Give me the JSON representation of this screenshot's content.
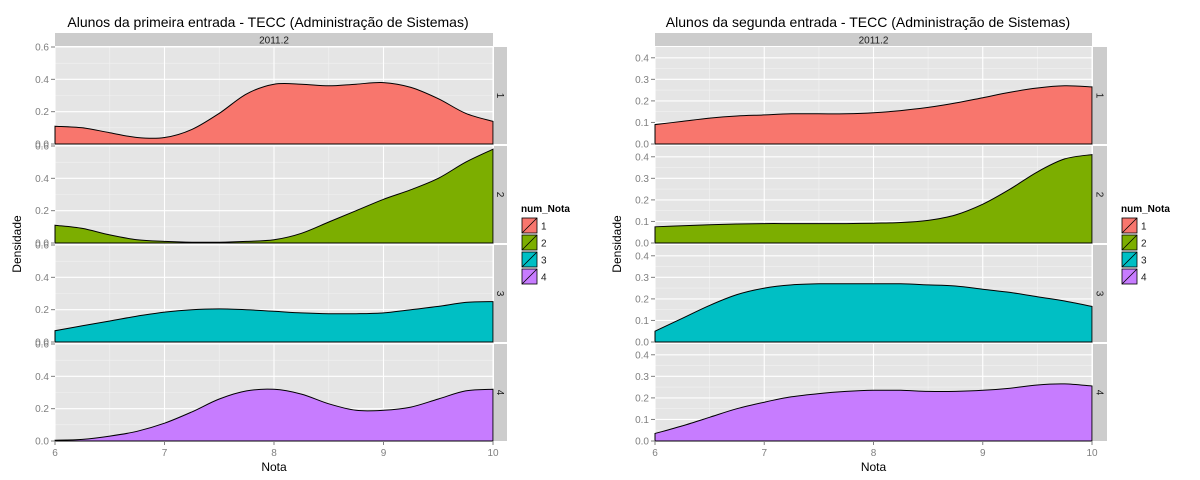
{
  "chart_data": [
    {
      "type": "area",
      "subtype": "faceted density",
      "title": "Alunos da primeira entrada -  TECC (Administração de Sistemas)",
      "facet_column_label": "2011.2",
      "facet_rows": [
        "1",
        "2",
        "3",
        "4"
      ],
      "xlabel": "Nota",
      "ylabel": "Densidade",
      "xlim": [
        6,
        10
      ],
      "x_ticks": [
        "6",
        "7",
        "8",
        "9",
        "10"
      ],
      "ylim": [
        0,
        0.6
      ],
      "y_ticks": [
        "0.0",
        "0.2",
        "0.4",
        "0.6"
      ],
      "grid": true,
      "legend": {
        "title": "num_Nota",
        "placement": "right",
        "items": [
          "1",
          "2",
          "3",
          "4"
        ]
      },
      "series": [
        {
          "facet": "1",
          "x": [
            6.0,
            6.25,
            6.5,
            6.75,
            7.0,
            7.25,
            7.5,
            7.75,
            8.0,
            8.25,
            8.5,
            8.75,
            9.0,
            9.25,
            9.5,
            9.75,
            10.0
          ],
          "y": [
            0.11,
            0.1,
            0.07,
            0.04,
            0.04,
            0.09,
            0.19,
            0.31,
            0.37,
            0.37,
            0.36,
            0.37,
            0.38,
            0.35,
            0.28,
            0.19,
            0.14
          ]
        },
        {
          "facet": "2",
          "x": [
            6.0,
            6.25,
            6.5,
            6.75,
            7.0,
            7.25,
            7.5,
            7.75,
            8.0,
            8.25,
            8.5,
            8.75,
            9.0,
            9.25,
            9.5,
            9.75,
            10.0
          ],
          "y": [
            0.11,
            0.09,
            0.05,
            0.02,
            0.01,
            0.005,
            0.005,
            0.01,
            0.02,
            0.06,
            0.13,
            0.2,
            0.27,
            0.33,
            0.4,
            0.5,
            0.58
          ]
        },
        {
          "facet": "3",
          "x": [
            6.0,
            6.25,
            6.5,
            6.75,
            7.0,
            7.25,
            7.5,
            7.75,
            8.0,
            8.25,
            8.5,
            8.75,
            9.0,
            9.25,
            9.5,
            9.75,
            10.0
          ],
          "y": [
            0.07,
            0.1,
            0.13,
            0.16,
            0.185,
            0.2,
            0.205,
            0.2,
            0.19,
            0.18,
            0.175,
            0.175,
            0.18,
            0.2,
            0.22,
            0.245,
            0.25
          ]
        },
        {
          "facet": "4",
          "x": [
            6.0,
            6.25,
            6.5,
            6.75,
            7.0,
            7.25,
            7.5,
            7.75,
            8.0,
            8.25,
            8.5,
            8.75,
            9.0,
            9.25,
            9.5,
            9.75,
            10.0
          ],
          "y": [
            0.005,
            0.01,
            0.03,
            0.06,
            0.11,
            0.18,
            0.26,
            0.31,
            0.32,
            0.29,
            0.23,
            0.19,
            0.19,
            0.21,
            0.26,
            0.31,
            0.32
          ]
        }
      ]
    },
    {
      "type": "area",
      "subtype": "faceted density",
      "title": "Alunos da segunda entrada -  TECC (Administração de Sistemas)",
      "facet_column_label": "2011.2",
      "facet_rows": [
        "1",
        "2",
        "3",
        "4"
      ],
      "xlabel": "Nota",
      "ylabel": "Densidade",
      "xlim": [
        6,
        10
      ],
      "x_ticks": [
        "6",
        "7",
        "8",
        "9",
        "10"
      ],
      "ylim": [
        0,
        0.45
      ],
      "y_ticks": [
        "0.0",
        "0.1",
        "0.2",
        "0.3",
        "0.4"
      ],
      "grid": true,
      "legend": {
        "title": "num_Nota",
        "placement": "right",
        "items": [
          "1",
          "2",
          "3",
          "4"
        ]
      },
      "series": [
        {
          "facet": "1",
          "x": [
            6.0,
            6.25,
            6.5,
            6.75,
            7.0,
            7.25,
            7.5,
            7.75,
            8.0,
            8.25,
            8.5,
            8.75,
            9.0,
            9.25,
            9.5,
            9.75,
            10.0
          ],
          "y": [
            0.09,
            0.105,
            0.12,
            0.13,
            0.135,
            0.14,
            0.14,
            0.14,
            0.145,
            0.155,
            0.17,
            0.19,
            0.215,
            0.24,
            0.26,
            0.27,
            0.265
          ]
        },
        {
          "facet": "2",
          "x": [
            6.0,
            6.25,
            6.5,
            6.75,
            7.0,
            7.25,
            7.5,
            7.75,
            8.0,
            8.25,
            8.5,
            8.75,
            9.0,
            9.25,
            9.5,
            9.75,
            10.0
          ],
          "y": [
            0.075,
            0.08,
            0.085,
            0.088,
            0.09,
            0.09,
            0.09,
            0.09,
            0.092,
            0.095,
            0.105,
            0.13,
            0.18,
            0.25,
            0.33,
            0.39,
            0.41
          ]
        },
        {
          "facet": "3",
          "x": [
            6.0,
            6.25,
            6.5,
            6.75,
            7.0,
            7.25,
            7.5,
            7.75,
            8.0,
            8.25,
            8.5,
            8.75,
            9.0,
            9.25,
            9.5,
            9.75,
            10.0
          ],
          "y": [
            0.05,
            0.11,
            0.17,
            0.22,
            0.25,
            0.265,
            0.27,
            0.27,
            0.27,
            0.27,
            0.265,
            0.26,
            0.245,
            0.23,
            0.21,
            0.19,
            0.165
          ]
        },
        {
          "facet": "4",
          "x": [
            6.0,
            6.25,
            6.5,
            6.75,
            7.0,
            7.25,
            7.5,
            7.75,
            8.0,
            8.25,
            8.5,
            8.75,
            9.0,
            9.25,
            9.5,
            9.75,
            10.0
          ],
          "y": [
            0.035,
            0.07,
            0.11,
            0.15,
            0.18,
            0.205,
            0.22,
            0.23,
            0.235,
            0.235,
            0.23,
            0.23,
            0.235,
            0.245,
            0.26,
            0.265,
            0.255
          ]
        }
      ]
    }
  ],
  "colors": {
    "fills": [
      "#F8766D",
      "#7CAE00",
      "#00BFC4",
      "#C77CFF"
    ],
    "panel_background": "#E5E5E5",
    "gridline": "#F2F2F2",
    "strip_background": "#CCCCCC",
    "outline": "#000000",
    "tick_text": "#7F7F7F"
  }
}
